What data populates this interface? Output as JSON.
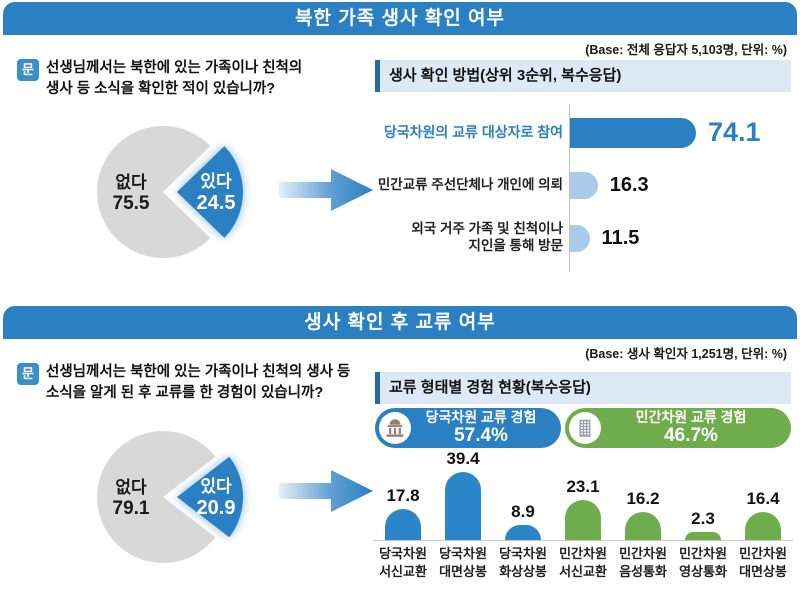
{
  "accent_blue": "#2b80c4",
  "accent_light_blue": "#a7cbe8",
  "accent_green": "#6fad4c",
  "pie_gray": "#d8d8d8",
  "panel1": {
    "title": "북한 가족 생사 확인 여부",
    "base": "(Base: 전체 응답자 5,103명, 단위: %)",
    "question": {
      "icon": "문",
      "line1": "선생님께서는 북한에 있는 가족이나 친척의",
      "line2": "생사 등 소식을 확인한 적이 있습니까?"
    },
    "pie": {
      "no_label": "없다",
      "no_value": "75.5",
      "yes_label": "있다",
      "yes_value": "24.5",
      "yes_pct": 24.5
    },
    "section_title": "생사 확인 방법(상위 3순위, 복수응답)",
    "bars": [
      {
        "lines": [
          "당국차원의 교류 대상자로 참여"
        ],
        "value": 74.1,
        "display": "74.1",
        "highlight": true
      },
      {
        "lines": [
          "민간교류 주선단체나 개인에 의뢰"
        ],
        "value": 16.3,
        "display": "16.3",
        "highlight": false
      },
      {
        "lines": [
          "외국 거주 가족 및 친척이나",
          "지인을 통해 방문"
        ],
        "value": 11.5,
        "display": "11.5",
        "highlight": false
      }
    ]
  },
  "panel2": {
    "title": "생사 확인 후 교류 여부",
    "base": "(Base: 생사 확인자 1,251명, 단위: %)",
    "question": {
      "icon": "문",
      "line1": "선생님께서는 북한에 있는 가족이나 친척의 생사 등",
      "line2": "소식을 알게 된 후 교류를 한 경험이 있습니까?"
    },
    "pie": {
      "no_label": "없다",
      "no_value": "79.1",
      "yes_label": "있다",
      "yes_value": "20.9",
      "yes_pct": 20.9
    },
    "section_title": "교류 형태별 경험 현황(복수응답)",
    "badges": [
      {
        "label": "당국차원 교류 경험",
        "value": "57.4%",
        "icon": "government-building"
      },
      {
        "label": "민간차원 교류 경험",
        "value": "46.7%",
        "icon": "apartment-building"
      }
    ],
    "bars": [
      {
        "lines": [
          "당국차원",
          "서신교환"
        ],
        "value": 17.8,
        "display": "17.8",
        "color": "blue"
      },
      {
        "lines": [
          "당국차원",
          "대면상봉"
        ],
        "value": 39.4,
        "display": "39.4",
        "color": "blue"
      },
      {
        "lines": [
          "당국차원",
          "화상상봉"
        ],
        "value": 8.9,
        "display": "8.9",
        "color": "blue"
      },
      {
        "lines": [
          "민간차원",
          "서신교환"
        ],
        "value": 23.1,
        "display": "23.1",
        "color": "green"
      },
      {
        "lines": [
          "민간차원",
          "음성통화"
        ],
        "value": 16.2,
        "display": "16.2",
        "color": "green"
      },
      {
        "lines": [
          "민간차원",
          "영상통화"
        ],
        "value": 2.3,
        "display": "2.3",
        "color": "green"
      },
      {
        "lines": [
          "민간차원",
          "대면상봉"
        ],
        "value": 16.4,
        "display": "16.4",
        "color": "green"
      }
    ]
  },
  "chart_data": [
    {
      "type": "pie",
      "title": "북한 가족 생사 확인 여부",
      "subtitle": "(Base: 전체 응답자 5,103명, 단위: %)",
      "labels": [
        "있다",
        "없다"
      ],
      "values": [
        24.5,
        75.5
      ]
    },
    {
      "type": "bar",
      "orientation": "horizontal",
      "title": "생사 확인 방법(상위 3순위, 복수응답)",
      "categories": [
        "당국차원의 교류 대상자로 참여",
        "민간교류 주선단체나 개인에 의뢰",
        "외국 거주 가족 및 친척이나 지인을 통해 방문"
      ],
      "values": [
        74.1,
        16.3,
        11.5
      ],
      "xlim": [
        0,
        80
      ]
    },
    {
      "type": "pie",
      "title": "생사 확인 후 교류 여부",
      "subtitle": "(Base: 생사 확인자 1,251명, 단위: %)",
      "labels": [
        "있다",
        "없다"
      ],
      "values": [
        20.9,
        79.1
      ]
    },
    {
      "type": "bar",
      "orientation": "vertical",
      "title": "교류 형태별 경험 현황(복수응답)",
      "categories": [
        "당국차원 서신교환",
        "당국차원 대면상봉",
        "당국차원 화상상봉",
        "민간차원 서신교환",
        "민간차원 음성통화",
        "민간차원 영상통화",
        "민간차원 대면상봉"
      ],
      "values": [
        17.8,
        39.4,
        8.9,
        23.1,
        16.2,
        2.3,
        16.4
      ],
      "series_groups": [
        {
          "name": "당국차원 교류 경험",
          "total": "57.4%"
        },
        {
          "name": "민간차원 교류 경험",
          "total": "46.7%"
        }
      ],
      "ylim": [
        0,
        45
      ]
    }
  ]
}
